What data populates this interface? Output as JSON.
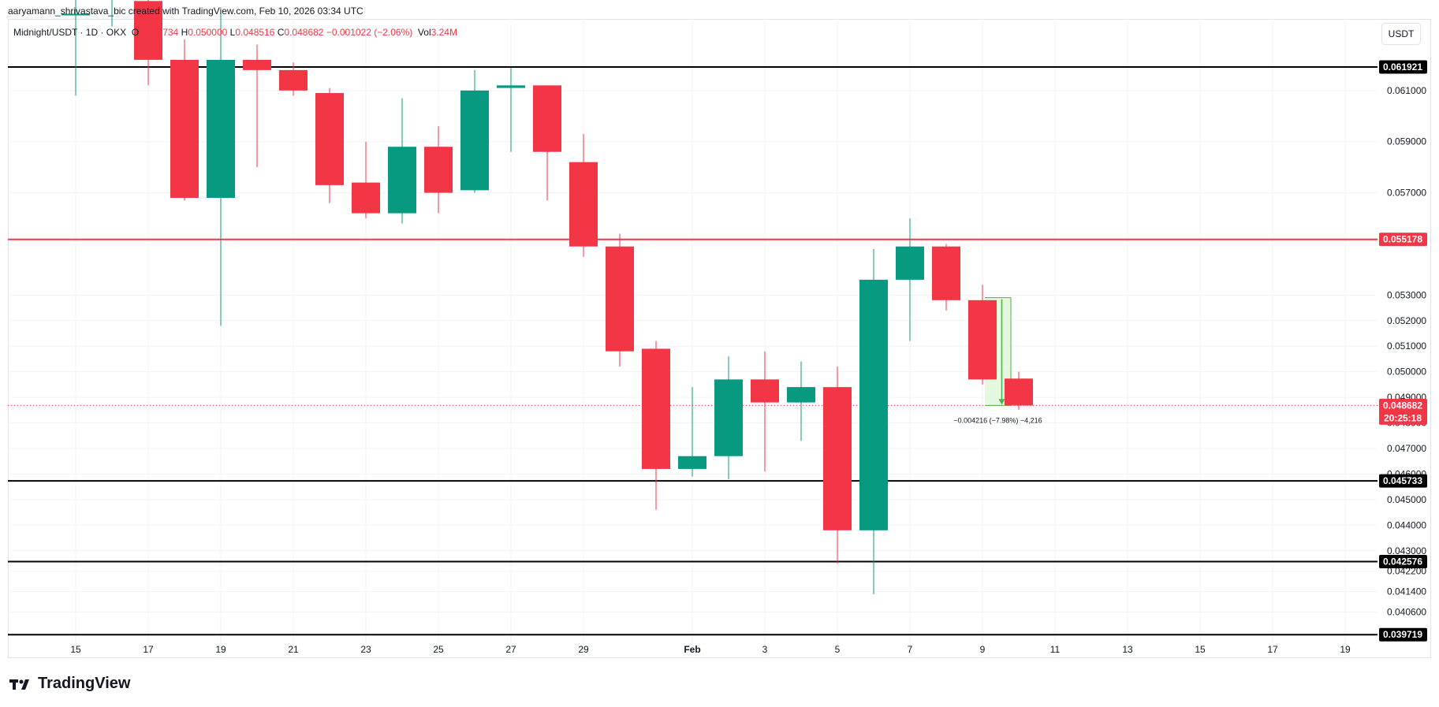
{
  "header": {
    "author_line": "aaryamann_shrivastava_bic created with TradingView.com, Feb 10, 2026 03:34 UTC"
  },
  "legend": {
    "symbol": "Midnight/USDT · 1D · OKX",
    "open_label": "O",
    "open_value": "0.049734",
    "high_label": "H",
    "high_value": "0.050000",
    "low_label": "L",
    "low_value": "0.048516",
    "close_label": "C",
    "close_value": "0.048682",
    "change": "−0.001022 (−2.06%)",
    "volume_label": "Vol",
    "volume_value": "3.24M"
  },
  "currency_button": "USDT",
  "brand": {
    "name": "TradingView",
    "logo_icon": "tradingview-logo-icon"
  },
  "colors": {
    "up": "#089981",
    "down": "#f23645",
    "support_line": "#000000",
    "resistance_red": "#f23645",
    "grid": "#f0f3fa",
    "measure_fill": "#dff7d9",
    "measure_stroke": "#4caf50"
  },
  "chart_data": {
    "type": "candlestick",
    "symbol": "Midnight/USDT",
    "interval": "1D",
    "exchange": "OKX",
    "y_axis": {
      "range": [
        0.0388,
        0.0638
      ],
      "ticks": [
        "0.061000",
        "0.059000",
        "0.057000",
        "0.053000",
        "0.052000",
        "0.051000",
        "0.050000",
        "0.049000",
        "0.048000",
        "0.047000",
        "0.046000",
        "0.045000",
        "0.044000",
        "0.043000",
        "0.042200",
        "0.041400",
        "0.040600"
      ]
    },
    "x_axis": {
      "ticks": [
        {
          "label": "15",
          "date": "2026-01-15"
        },
        {
          "label": "17",
          "date": "2026-01-17"
        },
        {
          "label": "19",
          "date": "2026-01-19"
        },
        {
          "label": "21",
          "date": "2026-01-21"
        },
        {
          "label": "23",
          "date": "2026-01-23"
        },
        {
          "label": "25",
          "date": "2026-01-25"
        },
        {
          "label": "27",
          "date": "2026-01-27"
        },
        {
          "label": "29",
          "date": "2026-01-29"
        },
        {
          "label": "Feb",
          "date": "2026-02-01"
        },
        {
          "label": "3",
          "date": "2026-02-03"
        },
        {
          "label": "5",
          "date": "2026-02-05"
        },
        {
          "label": "7",
          "date": "2026-02-07"
        },
        {
          "label": "9",
          "date": "2026-02-09"
        },
        {
          "label": "11",
          "date": "2026-02-11"
        },
        {
          "label": "13",
          "date": "2026-02-13"
        },
        {
          "label": "15",
          "date": "2026-02-15"
        },
        {
          "label": "17",
          "date": "2026-02-17"
        },
        {
          "label": "19",
          "date": "2026-02-19"
        }
      ]
    },
    "grid": true,
    "candles": [
      {
        "date": "2026-01-15",
        "open": 0.064,
        "high": 0.065,
        "low": 0.0608,
        "close": 0.064
      },
      {
        "date": "2026-01-16",
        "open": 0.065,
        "high": 0.0655,
        "low": 0.0635,
        "close": 0.065
      },
      {
        "date": "2026-01-17",
        "open": 0.0645,
        "high": 0.065,
        "low": 0.0612,
        "close": 0.0622
      },
      {
        "date": "2026-01-18",
        "open": 0.0622,
        "high": 0.063,
        "low": 0.0567,
        "close": 0.0568
      },
      {
        "date": "2026-01-19",
        "open": 0.0568,
        "high": 0.064,
        "low": 0.0518,
        "close": 0.0622
      },
      {
        "date": "2026-01-20",
        "open": 0.0622,
        "high": 0.0628,
        "low": 0.058,
        "close": 0.0618
      },
      {
        "date": "2026-01-21",
        "open": 0.0618,
        "high": 0.0621,
        "low": 0.0608,
        "close": 0.061
      },
      {
        "date": "2026-01-22",
        "open": 0.0609,
        "high": 0.0611,
        "low": 0.0566,
        "close": 0.0573
      },
      {
        "date": "2026-01-23",
        "open": 0.0574,
        "high": 0.059,
        "low": 0.056,
        "close": 0.0562
      },
      {
        "date": "2026-01-24",
        "open": 0.0562,
        "high": 0.0607,
        "low": 0.0558,
        "close": 0.0588
      },
      {
        "date": "2026-01-25",
        "open": 0.0588,
        "high": 0.0596,
        "low": 0.0562,
        "close": 0.057
      },
      {
        "date": "2026-01-26",
        "open": 0.0571,
        "high": 0.0618,
        "low": 0.057,
        "close": 0.061
      },
      {
        "date": "2026-01-27",
        "open": 0.0611,
        "high": 0.0619,
        "low": 0.0586,
        "close": 0.0612
      },
      {
        "date": "2026-01-28",
        "open": 0.0612,
        "high": 0.0612,
        "low": 0.0567,
        "close": 0.0586
      },
      {
        "date": "2026-01-29",
        "open": 0.0582,
        "high": 0.0593,
        "low": 0.0545,
        "close": 0.0549
      },
      {
        "date": "2026-01-30",
        "open": 0.0549,
        "high": 0.0554,
        "low": 0.0502,
        "close": 0.0508
      },
      {
        "date": "2026-01-31",
        "open": 0.0509,
        "high": 0.0512,
        "low": 0.0446,
        "close": 0.0462
      },
      {
        "date": "2026-02-01",
        "open": 0.0462,
        "high": 0.0494,
        "low": 0.0459,
        "close": 0.0467
      },
      {
        "date": "2026-02-02",
        "open": 0.0467,
        "high": 0.0506,
        "low": 0.0458,
        "close": 0.0497
      },
      {
        "date": "2026-02-03",
        "open": 0.0497,
        "high": 0.0508,
        "low": 0.0461,
        "close": 0.0488
      },
      {
        "date": "2026-02-04",
        "open": 0.0488,
        "high": 0.0504,
        "low": 0.0473,
        "close": 0.0494
      },
      {
        "date": "2026-02-05",
        "open": 0.0494,
        "high": 0.0502,
        "low": 0.0425,
        "close": 0.0438
      },
      {
        "date": "2026-02-06",
        "open": 0.0438,
        "high": 0.0548,
        "low": 0.0413,
        "close": 0.0536
      },
      {
        "date": "2026-02-07",
        "open": 0.0536,
        "high": 0.056,
        "low": 0.0512,
        "close": 0.0549
      },
      {
        "date": "2026-02-08",
        "open": 0.0549,
        "high": 0.055,
        "low": 0.0524,
        "close": 0.0528
      },
      {
        "date": "2026-02-09",
        "open": 0.0528,
        "high": 0.0534,
        "low": 0.0495,
        "close": 0.0497
      },
      {
        "date": "2026-02-10",
        "open": 0.049734,
        "high": 0.05,
        "low": 0.048516,
        "close": 0.048682
      }
    ],
    "horizontal_lines": [
      {
        "value": 0.061921,
        "label": "0.061921",
        "color": "#000000"
      },
      {
        "value": 0.055178,
        "label": "0.055178",
        "color": "#f23645"
      },
      {
        "value": 0.045733,
        "label": "0.045733",
        "color": "#000000"
      },
      {
        "value": 0.042576,
        "label": "0.042576",
        "color": "#000000"
      },
      {
        "value": 0.039719,
        "label": "0.039719",
        "color": "#000000"
      }
    ],
    "current_price": {
      "value": 0.048682,
      "label": "0.048682",
      "countdown": "20:25:18",
      "color": "#f23645"
    },
    "measure": {
      "start_date": "2026-02-09",
      "end_date": "2026-02-10",
      "from_price": 0.052898,
      "to_price": 0.048682,
      "label": "−0.004216 (−7.98%) −4,216"
    }
  }
}
